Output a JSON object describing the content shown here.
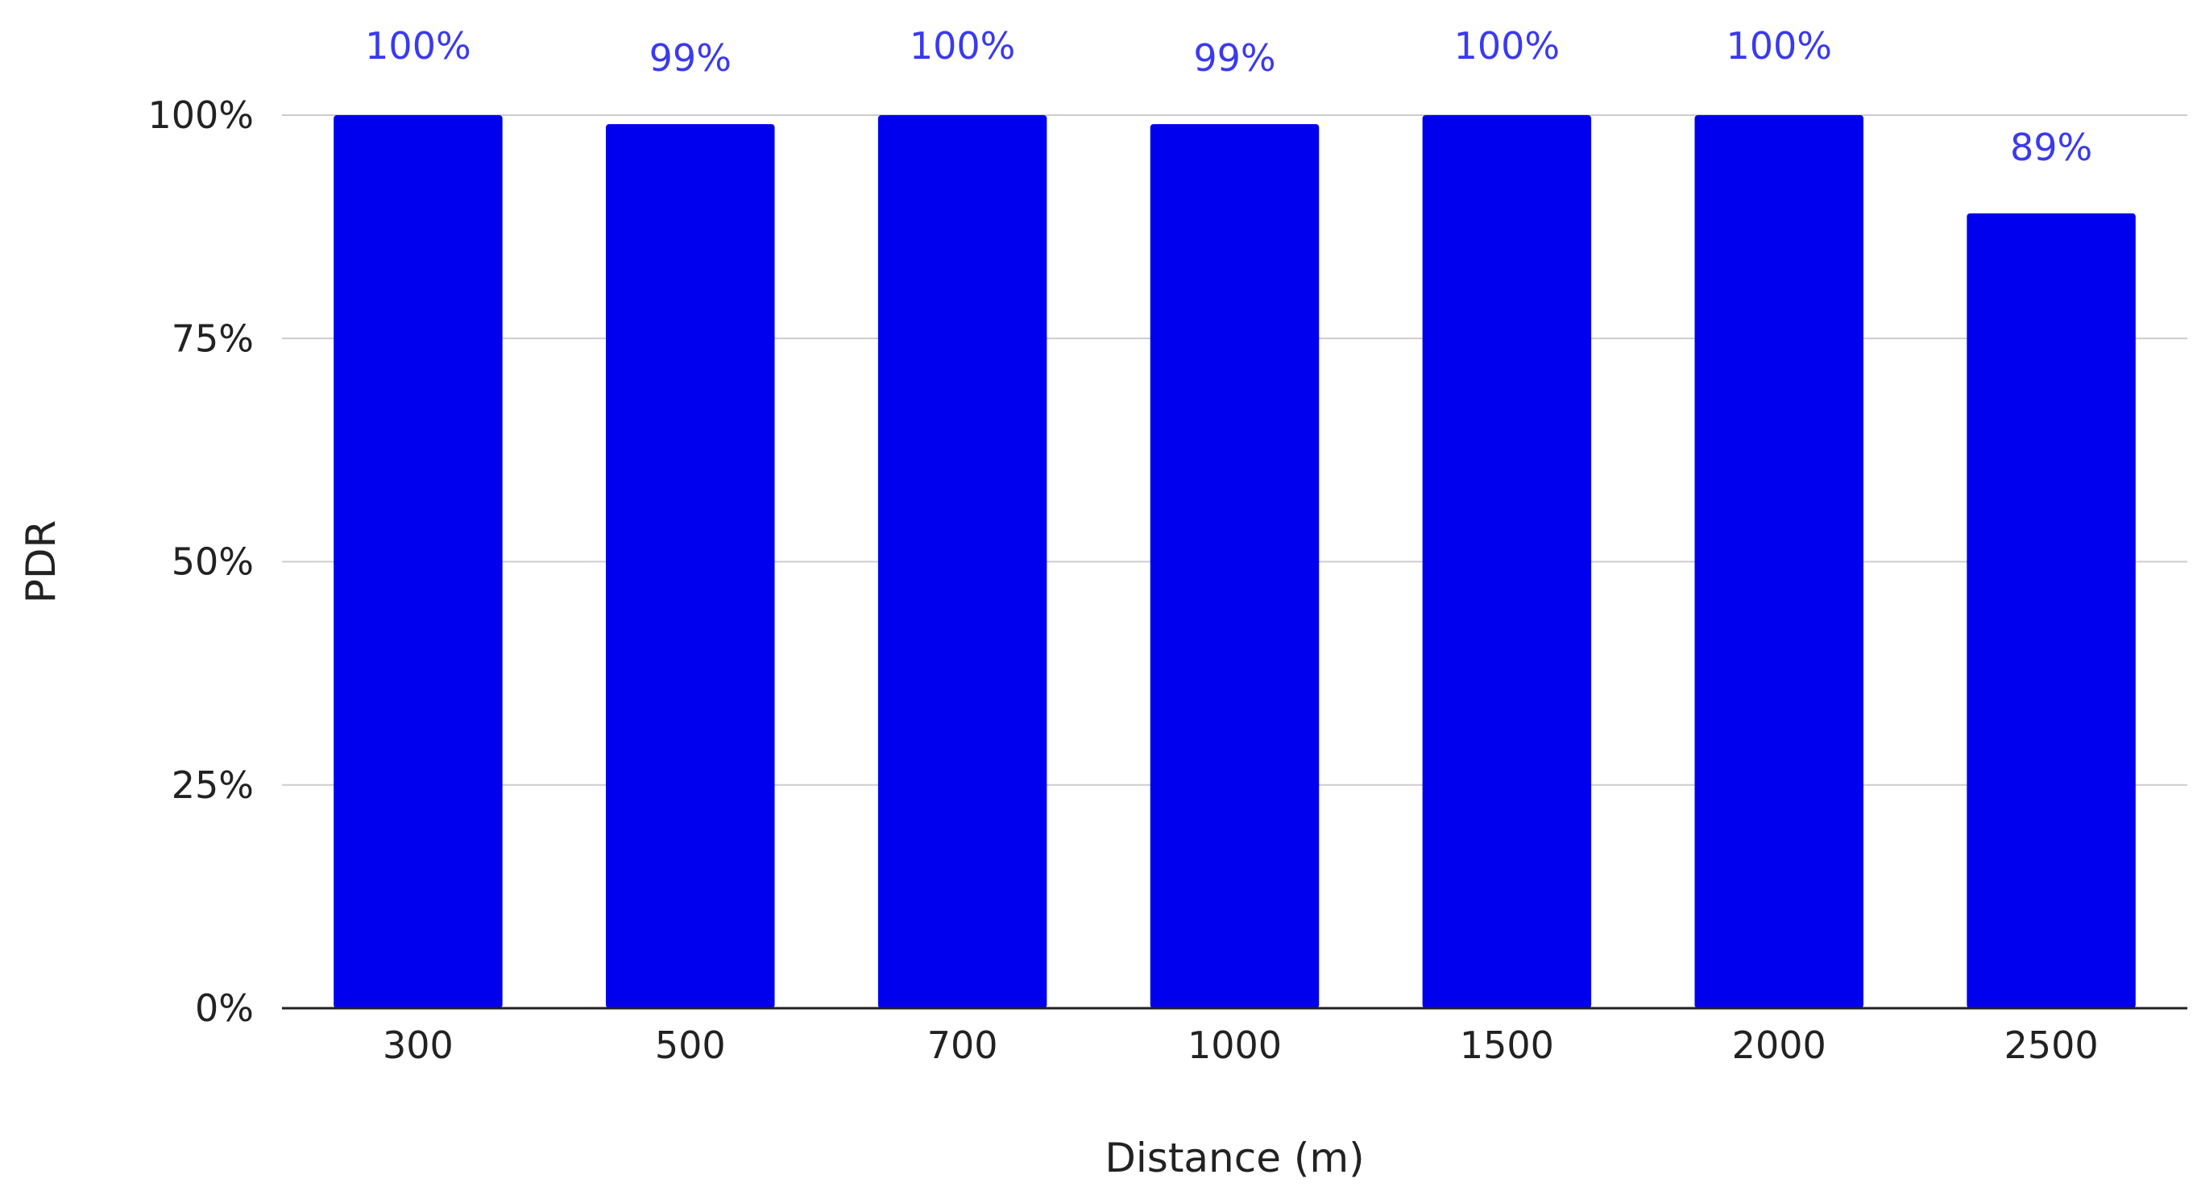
{
  "chart_data": {
    "type": "bar",
    "title": "",
    "xlabel": "Distance (m)",
    "ylabel": "PDR",
    "categories": [
      "300",
      "500",
      "700",
      "1000",
      "1500",
      "2000",
      "2500"
    ],
    "values": [
      100,
      99,
      100,
      99,
      100,
      100,
      89
    ],
    "data_labels": [
      "100%",
      "99%",
      "100%",
      "99%",
      "100%",
      "100%",
      "89%"
    ],
    "ylim": [
      0,
      100
    ],
    "yticks": [
      0,
      25,
      50,
      75,
      100
    ],
    "ytick_labels": [
      "0%",
      "25%",
      "50%",
      "75%",
      "100%"
    ],
    "grid": true,
    "legend": "none",
    "colors": {
      "bar": "#0000ee",
      "data_label": "#3a3aee",
      "grid": "#cccccc",
      "axis": "#222222"
    }
  }
}
